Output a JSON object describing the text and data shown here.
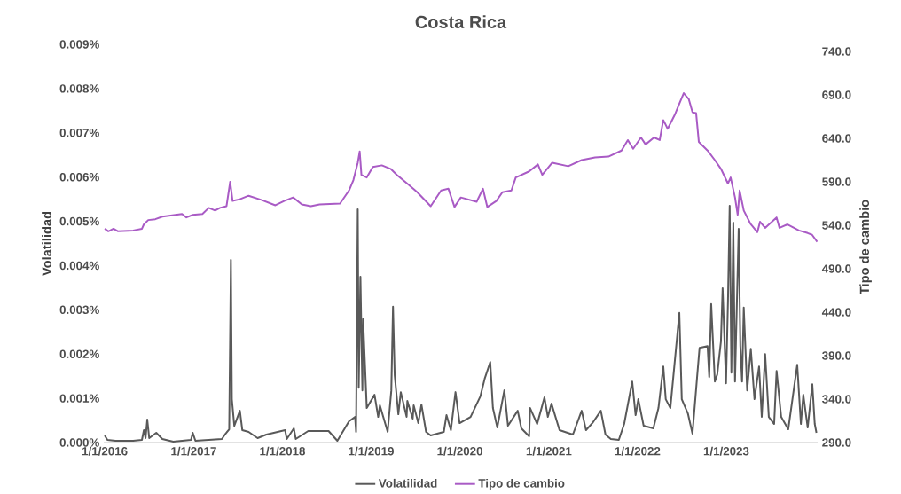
{
  "chart_data": {
    "type": "line",
    "title": "Costa Rica",
    "ylabel": "Volatilidad",
    "y2label": "Tipo de cambio",
    "legend": "bottom",
    "xlim": [
      "2015-12-28",
      "2024-01-12"
    ],
    "xticks": [
      {
        "value": "2016-01-01",
        "label": "1/1/2016"
      },
      {
        "value": "2017-01-01",
        "label": "1/1/2017"
      },
      {
        "value": "2018-01-01",
        "label": "1/1/2018"
      },
      {
        "value": "2019-01-01",
        "label": "1/1/2019"
      },
      {
        "value": "2020-01-01",
        "label": "1/1/2020"
      },
      {
        "value": "2021-01-01",
        "label": "1/1/2021"
      },
      {
        "value": "2022-01-01",
        "label": "1/1/2022"
      },
      {
        "value": "2023-01-01",
        "label": "1/1/2023"
      }
    ],
    "ylim": [
      0,
      0.009
    ],
    "yticks": [
      {
        "value": 0,
        "label": "0.000%"
      },
      {
        "value": 0.001,
        "label": "0.001%"
      },
      {
        "value": 0.002,
        "label": "0.002%"
      },
      {
        "value": 0.003,
        "label": "0.003%"
      },
      {
        "value": 0.004,
        "label": "0.004%"
      },
      {
        "value": 0.005,
        "label": "0.005%"
      },
      {
        "value": 0.006,
        "label": "0.006%"
      },
      {
        "value": 0.007,
        "label": "0.007%"
      },
      {
        "value": 0.008,
        "label": "0.008%"
      },
      {
        "value": 0.009,
        "label": "0.009%"
      }
    ],
    "y2lim": [
      290,
      740
    ],
    "y2ticks": [
      {
        "value": 290,
        "label": "290.0"
      },
      {
        "value": 340,
        "label": "340.0"
      },
      {
        "value": 390,
        "label": "390.0"
      },
      {
        "value": 440,
        "label": "440.0"
      },
      {
        "value": 490,
        "label": "490.0"
      },
      {
        "value": 540,
        "label": "540.0"
      },
      {
        "value": 590,
        "label": "590.0"
      },
      {
        "value": 640,
        "label": "640.0"
      },
      {
        "value": 690,
        "label": "690.0"
      },
      {
        "value": 740,
        "label": "740.0"
      }
    ],
    "series": [
      {
        "name": "Volatilidad",
        "color": "#595959",
        "axis": "y",
        "x": [
          "2016-01-01",
          "2016-01-12",
          "2016-02-14",
          "2016-04-27",
          "2016-06-02",
          "2016-06-10",
          "2016-06-17",
          "2016-06-24",
          "2016-07-02",
          "2016-07-31",
          "2016-08-25",
          "2016-10-09",
          "2016-12-21",
          "2016-12-28",
          "2017-01-08",
          "2017-04-27",
          "2017-05-12",
          "2017-05-27",
          "2017-06-03",
          "2017-06-07",
          "2017-06-17",
          "2017-07-10",
          "2017-07-20",
          "2017-08-15",
          "2017-09-21",
          "2017-10-27",
          "2018-01-12",
          "2018-01-19",
          "2018-02-17",
          "2018-02-25",
          "2018-04-17",
          "2018-07-10",
          "2018-08-15",
          "2018-10-02",
          "2018-10-27",
          "2018-10-31",
          "2018-11-07",
          "2018-11-11",
          "2018-11-18",
          "2018-11-26",
          "2018-11-29",
          "2018-12-07",
          "2018-12-14",
          "2019-01-15",
          "2019-01-30",
          "2019-02-06",
          "2019-03-10",
          "2019-03-25",
          "2019-04-01",
          "2019-04-08",
          "2019-04-23",
          "2019-05-03",
          "2019-05-27",
          "2019-05-30",
          "2019-06-21",
          "2019-06-25",
          "2019-07-14",
          "2019-07-27",
          "2019-08-15",
          "2019-09-03",
          "2019-10-27",
          "2019-11-07",
          "2019-11-25",
          "2019-12-14",
          "2019-12-31",
          "2020-02-14",
          "2020-03-25",
          "2020-04-12",
          "2020-05-05",
          "2020-05-16",
          "2020-06-03",
          "2020-07-02",
          "2020-07-17",
          "2020-08-26",
          "2020-09-10",
          "2020-10-12",
          "2020-10-16",
          "2020-11-14",
          "2020-12-14",
          "2020-12-28",
          "2021-01-12",
          "2021-02-14",
          "2021-04-10",
          "2021-05-16",
          "2021-06-03",
          "2021-07-02",
          "2021-08-03",
          "2021-08-22",
          "2021-09-13",
          "2021-10-16",
          "2021-11-07",
          "2021-12-10",
          "2021-12-24",
          "2022-01-04",
          "2022-01-26",
          "2022-03-07",
          "2022-03-28",
          "2022-04-17",
          "2022-04-27",
          "2022-05-16",
          "2022-06-22",
          "2022-07-02",
          "2022-07-27",
          "2022-08-15",
          "2022-09-03",
          "2022-09-13",
          "2022-10-16",
          "2022-10-23",
          "2022-10-31",
          "2022-11-15",
          "2022-11-25",
          "2022-12-10",
          "2022-12-17",
          "2022-12-31",
          "2023-01-08",
          "2023-01-15",
          "2023-01-22",
          "2023-01-30",
          "2023-02-06",
          "2023-02-21",
          "2023-02-28",
          "2023-03-07",
          "2023-03-14",
          "2023-03-28",
          "2023-04-12",
          "2023-04-27",
          "2023-05-16",
          "2023-05-27",
          "2023-06-10",
          "2023-06-25",
          "2023-07-17",
          "2023-07-27",
          "2023-08-15",
          "2023-09-13",
          "2023-10-20",
          "2023-11-04",
          "2023-11-14",
          "2023-12-02",
          "2023-12-21",
          "2023-12-31",
          "2024-01-07"
        ],
        "values": [
          0.00016,
          6e-05,
          4e-05,
          4e-05,
          6e-05,
          0.00028,
          0.0001,
          0.00052,
          0.0001,
          0.00022,
          8e-05,
          2e-05,
          6e-05,
          0.00022,
          4e-05,
          8e-05,
          0.0002,
          0.0003,
          0.00413,
          0.00098,
          0.00038,
          0.00072,
          0.00028,
          0.00024,
          0.0001,
          0.00018,
          0.00028,
          8e-05,
          0.00032,
          8e-05,
          0.00026,
          0.00026,
          4e-05,
          0.00048,
          0.00058,
          0.00024,
          0.00527,
          0.00124,
          0.00375,
          0.00118,
          0.00279,
          0.00172,
          0.00078,
          0.00108,
          0.00058,
          0.00084,
          0.00024,
          0.00118,
          0.00307,
          0.00152,
          0.00064,
          0.00114,
          0.00058,
          0.00094,
          0.00054,
          0.00084,
          0.00044,
          0.00086,
          0.00024,
          0.00016,
          0.00024,
          0.00062,
          0.00028,
          0.00114,
          0.00044,
          0.00058,
          0.00104,
          0.00144,
          0.00182,
          0.00078,
          0.00034,
          0.00118,
          0.00038,
          0.00072,
          0.00032,
          0.00014,
          0.00078,
          0.00042,
          0.00102,
          0.00058,
          0.00088,
          0.00028,
          0.00018,
          0.00072,
          0.00028,
          0.00046,
          0.00072,
          0.00018,
          8e-05,
          6e-05,
          0.00042,
          0.00138,
          0.00062,
          0.00098,
          0.00038,
          0.00032,
          0.00078,
          0.00172,
          0.00098,
          0.00078,
          0.00293,
          0.00098,
          0.00066,
          0.0002,
          0.00148,
          0.00214,
          0.00218,
          0.00148,
          0.00313,
          0.00138,
          0.00154,
          0.00228,
          0.00349,
          0.00134,
          0.00318,
          0.00535,
          0.00158,
          0.00497,
          0.00138,
          0.00483,
          0.00218,
          0.00138,
          0.00305,
          0.00118,
          0.00212,
          0.00098,
          0.00172,
          0.00058,
          0.002,
          0.00058,
          0.00042,
          0.00162,
          0.00058,
          0.0003,
          0.00176,
          0.00042,
          0.00108,
          0.00034,
          0.00132,
          0.00042,
          0.00022
        ]
      },
      {
        "name": "Tipo de cambio",
        "color": "#a95bc5",
        "axis": "y2",
        "x": [
          "2016-01-01",
          "2016-01-16",
          "2016-02-06",
          "2016-02-25",
          "2016-04-27",
          "2016-06-02",
          "2016-06-10",
          "2016-06-28",
          "2016-07-27",
          "2016-08-25",
          "2016-11-14",
          "2016-12-02",
          "2016-12-28",
          "2017-02-06",
          "2017-03-04",
          "2017-03-30",
          "2017-04-19",
          "2017-05-16",
          "2017-05-31",
          "2017-06-10",
          "2017-07-10",
          "2017-08-15",
          "2017-10-09",
          "2017-12-03",
          "2018-01-08",
          "2018-02-14",
          "2018-03-22",
          "2018-04-28",
          "2018-06-03",
          "2018-08-26",
          "2018-10-02",
          "2018-10-20",
          "2018-11-07",
          "2018-11-15",
          "2018-11-22",
          "2018-12-14",
          "2019-01-08",
          "2019-02-14",
          "2019-03-22",
          "2019-04-17",
          "2019-06-03",
          "2019-07-10",
          "2019-09-03",
          "2019-10-16",
          "2019-11-15",
          "2019-12-10",
          "2020-01-05",
          "2020-03-10",
          "2020-04-05",
          "2020-04-23",
          "2020-05-30",
          "2020-06-24",
          "2020-07-31",
          "2020-08-18",
          "2020-10-12",
          "2020-11-17",
          "2020-12-05",
          "2021-01-15",
          "2021-03-22",
          "2021-05-16",
          "2021-07-10",
          "2021-09-03",
          "2021-10-27",
          "2021-11-22",
          "2021-12-14",
          "2022-01-15",
          "2022-02-03",
          "2022-03-10",
          "2022-04-02",
          "2022-04-17",
          "2022-05-05",
          "2022-06-03",
          "2022-06-22",
          "2022-07-10",
          "2022-07-31",
          "2022-08-15",
          "2022-08-30",
          "2022-09-10",
          "2022-10-16",
          "2022-11-15",
          "2022-12-10",
          "2023-01-08",
          "2023-01-19",
          "2023-02-06",
          "2023-02-17",
          "2023-02-25",
          "2023-03-14",
          "2023-04-10",
          "2023-05-09",
          "2023-05-20",
          "2023-06-10",
          "2023-07-27",
          "2023-08-08",
          "2023-09-10",
          "2023-10-27",
          "2023-12-02",
          "2023-12-20",
          "2024-01-10"
        ],
        "values": [
          536,
          533,
          536,
          533,
          534,
          536,
          541,
          546,
          547,
          550,
          553,
          549,
          552,
          553,
          560,
          557,
          560,
          562,
          590,
          568,
          570,
          574,
          569,
          563,
          568,
          572,
          564,
          562,
          564,
          565,
          580,
          592,
          612,
          625,
          598,
          595,
          607,
          609,
          605,
          598,
          587,
          578,
          562,
          580,
          582,
          561,
          572,
          567,
          582,
          561,
          568,
          578,
          580,
          595,
          602,
          610,
          598,
          612,
          608,
          615,
          618,
          619,
          626,
          638,
          628,
          641,
          633,
          641,
          638,
          661,
          651,
          667,
          680,
          692,
          685,
          670,
          669,
          636,
          626,
          615,
          605,
          588,
          595,
          572,
          552,
          580,
          557,
          542,
          532,
          544,
          537,
          549,
          537,
          541,
          534,
          531,
          529,
          521
        ]
      }
    ]
  }
}
